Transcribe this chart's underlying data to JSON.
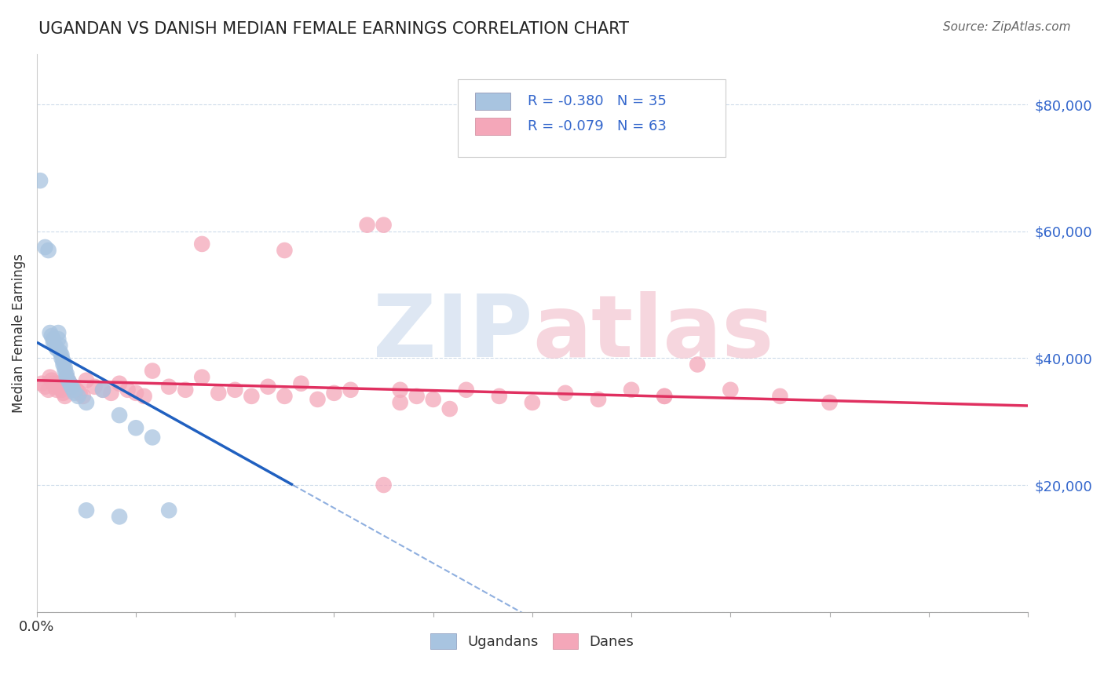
{
  "title": "UGANDAN VS DANISH MEDIAN FEMALE EARNINGS CORRELATION CHART",
  "source": "Source: ZipAtlas.com",
  "ylabel": "Median Female Earnings",
  "xlim": [
    0.0,
    0.6
  ],
  "ylim": [
    0,
    88000
  ],
  "yticks": [
    0,
    20000,
    40000,
    60000,
    80000
  ],
  "xticks": [
    0.0,
    0.06,
    0.12,
    0.18,
    0.24,
    0.3,
    0.36,
    0.42,
    0.48,
    0.54,
    0.6
  ],
  "xtick_labels_show": {
    "0.0": "0.0%",
    "0.60": "60.0%"
  },
  "ugandan_R": -0.38,
  "ugandan_N": 35,
  "danish_R": -0.079,
  "danish_N": 63,
  "ugandan_color": "#a8c4e0",
  "danish_color": "#f4a7b9",
  "ugandan_line_color": "#2060c0",
  "danish_line_color": "#e03060",
  "watermark_color_zip": "#c8d8ec",
  "watermark_color_atlas": "#f0bcc8",
  "legend_ugandans": "Ugandans",
  "legend_danes": "Danes",
  "background_color": "#ffffff",
  "grid_color": "#c8d8e8",
  "ugandan_x": [
    0.002,
    0.005,
    0.007,
    0.008,
    0.009,
    0.01,
    0.01,
    0.011,
    0.012,
    0.013,
    0.013,
    0.014,
    0.014,
    0.015,
    0.015,
    0.016,
    0.016,
    0.017,
    0.017,
    0.018,
    0.018,
    0.019,
    0.02,
    0.021,
    0.022,
    0.023,
    0.025,
    0.03,
    0.04,
    0.05,
    0.06,
    0.07,
    0.08,
    0.05,
    0.03
  ],
  "ugandan_y": [
    68000,
    57500,
    57000,
    44000,
    43500,
    43000,
    42500,
    42000,
    41500,
    44000,
    43000,
    42000,
    41000,
    40500,
    40000,
    39500,
    39000,
    38500,
    38000,
    37500,
    37000,
    36500,
    36000,
    35500,
    35000,
    34500,
    34000,
    33000,
    35000,
    31000,
    29000,
    27500,
    16000,
    15000,
    16000
  ],
  "danish_x": [
    0.003,
    0.005,
    0.007,
    0.008,
    0.009,
    0.01,
    0.011,
    0.012,
    0.013,
    0.014,
    0.015,
    0.016,
    0.017,
    0.018,
    0.019,
    0.02,
    0.022,
    0.024,
    0.026,
    0.028,
    0.03,
    0.035,
    0.04,
    0.045,
    0.05,
    0.055,
    0.06,
    0.065,
    0.07,
    0.08,
    0.09,
    0.1,
    0.11,
    0.12,
    0.13,
    0.14,
    0.15,
    0.16,
    0.17,
    0.18,
    0.19,
    0.2,
    0.21,
    0.22,
    0.23,
    0.24,
    0.26,
    0.28,
    0.3,
    0.32,
    0.34,
    0.36,
    0.38,
    0.4,
    0.42,
    0.45,
    0.48,
    0.21,
    0.15,
    0.1,
    0.22,
    0.25,
    0.38
  ],
  "danish_y": [
    36000,
    35500,
    35000,
    37000,
    36500,
    36000,
    35500,
    35000,
    36000,
    35500,
    35000,
    34500,
    34000,
    37000,
    36500,
    36000,
    35500,
    35000,
    34500,
    34000,
    36500,
    35500,
    35000,
    34500,
    36000,
    35000,
    34500,
    34000,
    38000,
    35500,
    35000,
    37000,
    34500,
    35000,
    34000,
    35500,
    34000,
    36000,
    33500,
    34500,
    35000,
    61000,
    61000,
    35000,
    34000,
    33500,
    35000,
    34000,
    33000,
    34500,
    33500,
    35000,
    34000,
    39000,
    35000,
    34000,
    33000,
    20000,
    57000,
    58000,
    33000,
    32000,
    34000
  ]
}
